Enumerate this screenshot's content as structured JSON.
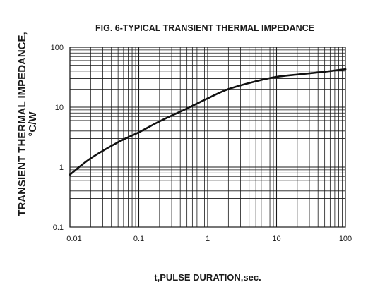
{
  "chart_data": {
    "type": "line",
    "title": "FIG. 6-TYPICAL TRANSIENT THERMAL IMPEDANCE",
    "xlabel": "t,PULSE DURATION,sec.",
    "ylabel_line1": "TRANSIENT THERMAL IMPEDANCE,",
    "ylabel_line2": "°C/W",
    "x_scale": "log",
    "y_scale": "log",
    "xlim": [
      0.01,
      100
    ],
    "ylim": [
      0.1,
      100
    ],
    "x_ticks": [
      "0.01",
      "0.1",
      "1",
      "10",
      "100"
    ],
    "y_ticks": [
      "100",
      "10",
      "1",
      "0.1"
    ],
    "grid": true,
    "legend": "none",
    "series": [
      {
        "x": [
          0.01,
          0.02,
          0.05,
          0.1,
          0.2,
          0.5,
          1,
          2,
          5,
          10,
          20,
          50,
          100
        ],
        "y": [
          0.75,
          1.4,
          2.6,
          3.8,
          5.8,
          9.5,
          14,
          20,
          27,
          32,
          35,
          39,
          43
        ]
      }
    ]
  }
}
